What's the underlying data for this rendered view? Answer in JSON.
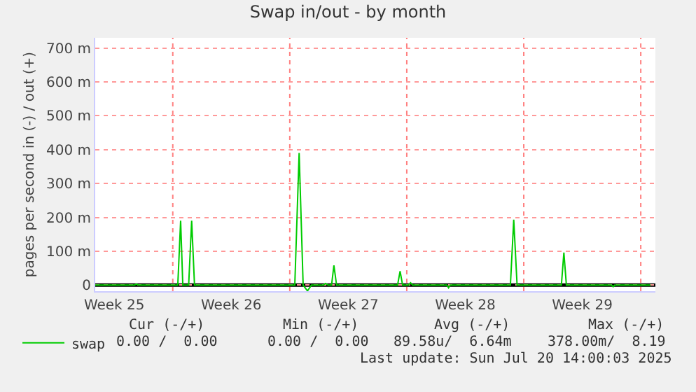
{
  "chart_data": {
    "type": "line",
    "title": "Swap in/out - by month",
    "ylabel": "pages per second in (-) / out (+)",
    "x": [
      "2025-06-17T08:38",
      "2025-06-19T16:48",
      "2025-06-19T19:55",
      "2025-06-19T22:48",
      "2025-06-22T07:12",
      "2025-06-22T11:17",
      "2025-06-22T14:24",
      "2025-06-22T22:48",
      "2025-06-23T03:07",
      "2025-06-23T07:12",
      "2025-06-29T07:12",
      "2025-06-29T13:26",
      "2025-06-29T19:12",
      "2025-06-30T01:26",
      "2025-06-30T07:12",
      "2025-07-01T00:00",
      "2025-07-01T03:22",
      "2025-07-01T07:12",
      "2025-07-01T12:00",
      "2025-07-01T15:22",
      "2025-07-01T19:12",
      "2025-07-05T10:48",
      "2025-07-05T14:24",
      "2025-07-05T18:00",
      "2025-07-06T02:24",
      "2025-07-06T05:31",
      "2025-07-06T08:24",
      "2025-07-08T09:36",
      "2025-07-08T12:00",
      "2025-07-08T14:24",
      "2025-07-12T04:48",
      "2025-07-12T09:36",
      "2025-07-12T14:24",
      "2025-07-15T06:00",
      "2025-07-15T09:36",
      "2025-07-15T13:12",
      "2025-07-18T06:00",
      "2025-07-18T08:24",
      "2025-07-18T10:48",
      "2025-07-20T14:00"
    ],
    "series": [
      {
        "name": "swap",
        "color": "#00cc00",
        "values": [
          0,
          0,
          3,
          0,
          0,
          190,
          0,
          0,
          190,
          0,
          0,
          390,
          0,
          -17,
          0,
          0,
          5,
          0,
          0,
          58,
          0,
          0,
          41,
          0,
          0,
          7,
          0,
          0,
          -8,
          0,
          0,
          193,
          0,
          0,
          96,
          0,
          0,
          -5,
          0,
          0
        ]
      }
    ],
    "xlim": [
      "2025-06-17T08:38",
      "2025-07-20T21:00"
    ],
    "xticks": [
      {
        "value": "2025-06-18T12:00",
        "label": "Week 25"
      },
      {
        "value": "2025-06-22",
        "label": null
      },
      {
        "value": "2025-06-25T12:00",
        "label": "Week 26"
      },
      {
        "value": "2025-06-29",
        "label": null
      },
      {
        "value": "2025-07-02T12:00",
        "label": "Week 27"
      },
      {
        "value": "2025-07-06",
        "label": null
      },
      {
        "value": "2025-07-09T12:00",
        "label": "Week 28"
      },
      {
        "value": "2025-07-13",
        "label": null
      },
      {
        "value": "2025-07-16T12:00",
        "label": "Week 29"
      },
      {
        "value": "2025-07-20",
        "label": null
      }
    ],
    "ylim": [
      -18,
      730
    ],
    "yticks": [
      0,
      {
        "value": 100,
        "label": "100 m"
      },
      {
        "value": 200,
        "label": "200 m"
      },
      {
        "value": 300,
        "label": "300 m"
      },
      {
        "value": 400,
        "label": "400 m"
      },
      {
        "value": 500,
        "label": "500 m"
      },
      {
        "value": 600,
        "label": "600 m"
      },
      {
        "value": 700,
        "label": "700 m"
      }
    ],
    "grid": true,
    "legend": "bottom left",
    "marker": "none",
    "line_style": "solid",
    "ref_lines": [
      {
        "axis": "y",
        "value": 0,
        "color": "#000000"
      }
    ],
    "annotations": [
      "Cur (-/+)",
      "Min (-/+)",
      "Avg (-/+)",
      "Max (-/+)",
      "0.00 /  0.00",
      "0.00 /  0.00",
      "89.58u/  6.64m",
      "378.00m/  8.19",
      "Last update: Sun Jul 20 14:00:03 2025"
    ]
  }
}
